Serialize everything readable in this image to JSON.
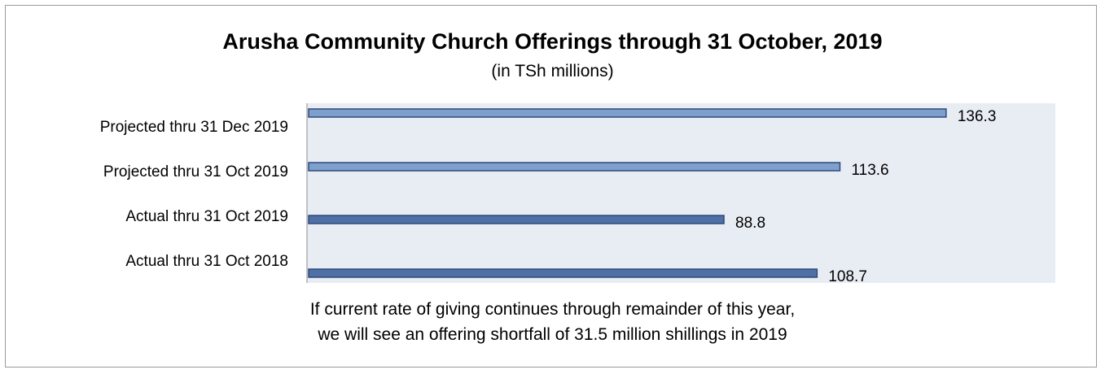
{
  "chart_data": {
    "type": "bar",
    "orientation": "horizontal",
    "title": "Arusha Community Church Offerings through 31 October, 2019",
    "subtitle": "(in TSh millions)",
    "categories": [
      "Projected thru 31 Dec 2019",
      "Projected thru 31 Oct 2019",
      "Actual thru 31 Oct 2019",
      "Actual thru 31 Oct 2018"
    ],
    "values": [
      136.3,
      113.6,
      88.8,
      108.7
    ],
    "value_labels": [
      "136.3",
      "113.6",
      "88.8",
      "108.7"
    ],
    "xlim": [
      0,
      160
    ],
    "grid": false,
    "colors": {
      "projected_fill": "#7f9fcd",
      "actual_fill": "#4f6fa5",
      "bar_border": "#2e4a7a",
      "plot_bg": "#e8ecf3"
    }
  },
  "footnote": {
    "line1": "If current rate of giving continues through remainder of this year,",
    "line2": "we will see an offering shortfall of 31.5 million shillings in 2019"
  }
}
